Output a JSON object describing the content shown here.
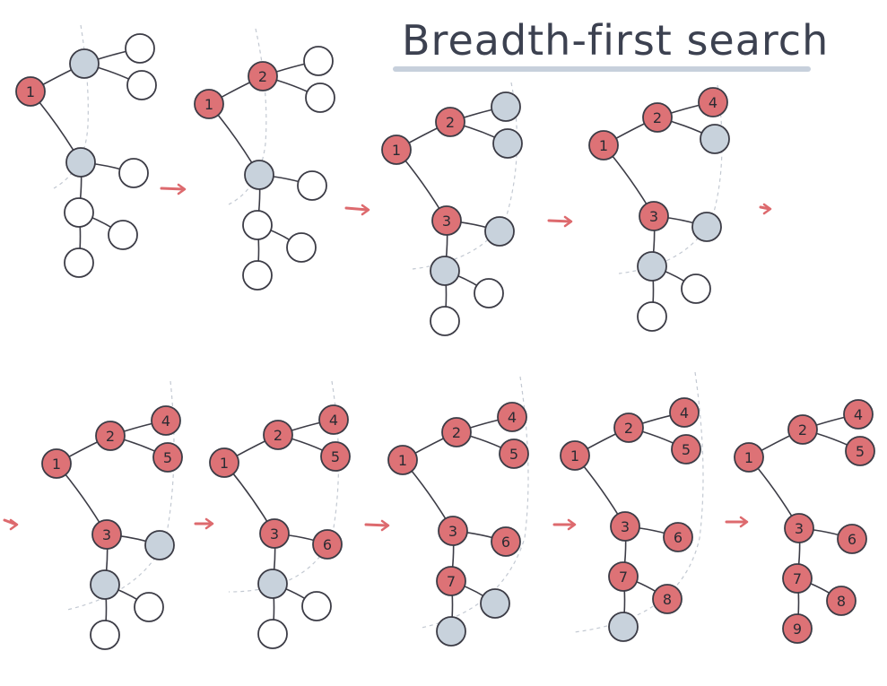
{
  "title": "Breadth-first search",
  "colors": {
    "visited": "#dd7276",
    "frontier": "#c8d2dc",
    "unvisited": "#ffffff",
    "stroke": "#3c3c46",
    "arrow": "#dd6a6e",
    "frontier_line": "#c3c9d2",
    "title_underline": "#c7d0dc"
  },
  "node_states": [
    "visited",
    "frontier",
    "unvisited"
  ],
  "steps": [
    {
      "labels": [
        "1",
        "",
        "",
        "",
        "",
        "",
        "",
        "",
        ""
      ],
      "states": [
        "visited",
        "frontier",
        "unvisited",
        "unvisited",
        "frontier",
        "unvisited",
        "unvisited",
        "unvisited",
        "unvisited"
      ]
    },
    {
      "labels": [
        "1",
        "2",
        "",
        "",
        "",
        "",
        "",
        "",
        ""
      ],
      "states": [
        "visited",
        "visited",
        "unvisited",
        "unvisited",
        "frontier",
        "unvisited",
        "unvisited",
        "unvisited",
        "unvisited"
      ]
    },
    {
      "labels": [
        "1",
        "2",
        "",
        "",
        "3",
        "",
        "",
        "",
        ""
      ],
      "states": [
        "visited",
        "visited",
        "frontier",
        "frontier",
        "visited",
        "frontier",
        "frontier",
        "unvisited",
        "unvisited"
      ]
    },
    {
      "labels": [
        "1",
        "2",
        "4",
        "",
        "3",
        "",
        "",
        "",
        ""
      ],
      "states": [
        "visited",
        "visited",
        "visited",
        "frontier",
        "visited",
        "frontier",
        "frontier",
        "unvisited",
        "unvisited"
      ]
    },
    {
      "labels": [
        "1",
        "2",
        "4",
        "5",
        "3",
        "",
        "",
        "",
        ""
      ],
      "states": [
        "visited",
        "visited",
        "visited",
        "visited",
        "visited",
        "frontier",
        "frontier",
        "unvisited",
        "unvisited"
      ]
    },
    {
      "labels": [
        "1",
        "2",
        "4",
        "5",
        "3",
        "6",
        "",
        "",
        ""
      ],
      "states": [
        "visited",
        "visited",
        "visited",
        "visited",
        "visited",
        "visited",
        "frontier",
        "unvisited",
        "unvisited"
      ]
    },
    {
      "labels": [
        "1",
        "2",
        "4",
        "5",
        "3",
        "6",
        "7",
        "",
        ""
      ],
      "states": [
        "visited",
        "visited",
        "visited",
        "visited",
        "visited",
        "visited",
        "visited",
        "frontier",
        "frontier"
      ]
    },
    {
      "labels": [
        "1",
        "2",
        "4",
        "5",
        "3",
        "6",
        "7",
        "8",
        ""
      ],
      "states": [
        "visited",
        "visited",
        "visited",
        "visited",
        "visited",
        "visited",
        "visited",
        "visited",
        "frontier"
      ]
    },
    {
      "labels": [
        "1",
        "2",
        "4",
        "5",
        "3",
        "6",
        "7",
        "8",
        "9"
      ],
      "states": [
        "visited",
        "visited",
        "visited",
        "visited",
        "visited",
        "visited",
        "visited",
        "visited",
        "visited"
      ]
    }
  ],
  "edges": [
    [
      0,
      1
    ],
    [
      1,
      2
    ],
    [
      1,
      3
    ],
    [
      0,
      4
    ],
    [
      4,
      5
    ],
    [
      4,
      6
    ],
    [
      6,
      7
    ],
    [
      6,
      8
    ]
  ]
}
